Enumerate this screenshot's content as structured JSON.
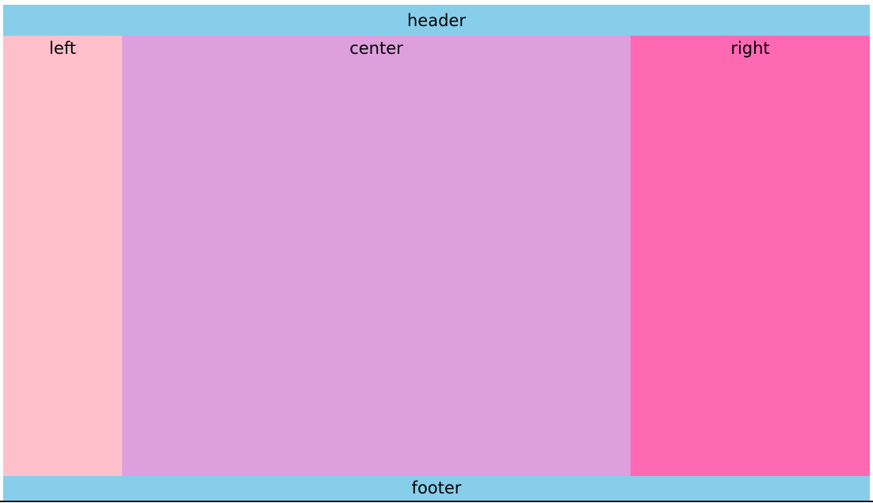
{
  "header": {
    "label": "header"
  },
  "columns": {
    "left": {
      "label": "left"
    },
    "center": {
      "label": "center"
    },
    "right": {
      "label": "right"
    }
  },
  "footer": {
    "label": "footer"
  },
  "colors": {
    "header": "#87ceeb",
    "left": "#ffc0cb",
    "center": "#dda0dd",
    "right": "#ff69b4",
    "footer": "#87ceeb"
  }
}
